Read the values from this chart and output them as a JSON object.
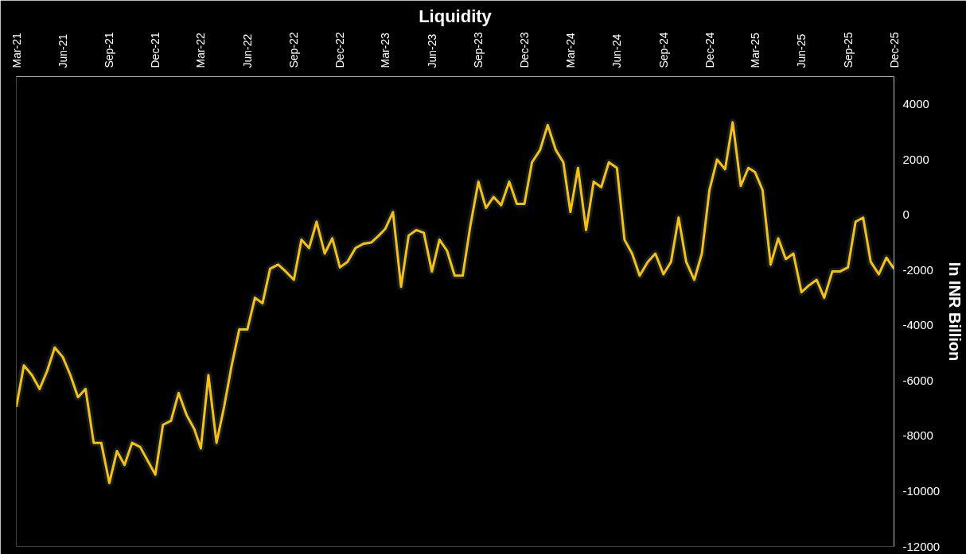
{
  "chart_data": {
    "type": "line",
    "title": "Liquidity",
    "ylabel": "In INR Billion",
    "x": [
      "2021-03-01",
      "2021-03-16",
      "2021-04-01",
      "2021-04-16",
      "2021-05-01",
      "2021-05-16",
      "2021-06-01",
      "2021-06-16",
      "2021-07-01",
      "2021-07-16",
      "2021-08-01",
      "2021-08-16",
      "2021-09-01",
      "2021-09-16",
      "2021-10-01",
      "2021-10-16",
      "2021-11-01",
      "2021-11-16",
      "2021-12-01",
      "2021-12-16",
      "2022-01-01",
      "2022-01-16",
      "2022-02-01",
      "2022-02-16",
      "2022-03-01",
      "2022-03-16",
      "2022-04-01",
      "2022-04-16",
      "2022-05-01",
      "2022-05-16",
      "2022-06-01",
      "2022-06-16",
      "2022-07-01",
      "2022-07-16",
      "2022-08-01",
      "2022-08-16",
      "2022-09-01",
      "2022-09-16",
      "2022-10-01",
      "2022-10-16",
      "2022-11-01",
      "2022-11-16",
      "2022-12-01",
      "2022-12-16",
      "2023-01-01",
      "2023-01-16",
      "2023-02-01",
      "2023-02-16",
      "2023-03-01",
      "2023-03-16",
      "2023-04-01",
      "2023-04-16",
      "2023-05-01",
      "2023-05-16",
      "2023-06-01",
      "2023-06-16",
      "2023-07-01",
      "2023-07-16",
      "2023-08-01",
      "2023-08-16",
      "2023-09-01",
      "2023-09-16",
      "2023-10-01",
      "2023-10-16",
      "2023-11-01",
      "2023-11-16",
      "2023-12-01",
      "2023-12-16",
      "2024-01-01",
      "2024-01-16",
      "2024-02-01",
      "2024-02-16",
      "2024-03-01",
      "2024-03-16",
      "2024-04-01",
      "2024-04-16",
      "2024-05-01",
      "2024-05-16",
      "2024-06-01",
      "2024-06-16",
      "2024-07-01",
      "2024-07-16",
      "2024-08-01",
      "2024-08-16",
      "2024-09-01",
      "2024-09-16",
      "2024-10-01",
      "2024-10-16",
      "2024-11-01",
      "2024-11-16",
      "2024-12-01",
      "2024-12-16",
      "2025-01-01",
      "2025-01-16",
      "2025-02-01",
      "2025-02-16",
      "2025-03-01",
      "2025-03-16",
      "2025-04-01",
      "2025-04-16",
      "2025-05-01",
      "2025-05-16",
      "2025-06-01",
      "2025-06-16",
      "2025-07-01",
      "2025-07-16",
      "2025-08-01",
      "2025-08-16",
      "2025-09-01",
      "2025-09-16",
      "2025-10-01",
      "2025-10-16",
      "2025-11-01",
      "2025-11-16",
      "2025-12-01"
    ],
    "series": [
      {
        "color": "#ffc000",
        "values": [
          -6950,
          -5450,
          -5800,
          -6300,
          -5650,
          -4800,
          -5150,
          -5800,
          -6600,
          -6300,
          -8250,
          -8250,
          -9700,
          -8550,
          -9050,
          -8250,
          -8400,
          -8900,
          -9400,
          -7600,
          -7450,
          -6450,
          -7250,
          -7750,
          -8450,
          -5800,
          -8250,
          -6950,
          -5450,
          -4150,
          -4150,
          -3000,
          -3200,
          -1950,
          -1800,
          -2050,
          -2350,
          -900,
          -1200,
          -250,
          -1400,
          -850,
          -1900,
          -1700,
          -1200,
          -1050,
          -1000,
          -750,
          -500,
          100,
          -2600,
          -750,
          -550,
          -650,
          -2050,
          -900,
          -1300,
          -2200,
          -2200,
          -400,
          1200,
          250,
          650,
          350,
          1200,
          400,
          400,
          1900,
          2350,
          3250,
          2350,
          1900,
          100,
          1700,
          -550,
          1200,
          1000,
          1900,
          1700,
          -900,
          -1400,
          -2200,
          -1700,
          -1400,
          -2150,
          -1700,
          -100,
          -1700,
          -2350,
          -1400,
          900,
          2000,
          1650,
          3350,
          1050,
          1700,
          1550,
          900,
          -1800,
          -850,
          -1600,
          -1400,
          -2800,
          -2550,
          -2350,
          -3000,
          -2050,
          -2050,
          -1900,
          -250,
          -100,
          -1700,
          -2150,
          -1550,
          -1950
        ]
      }
    ],
    "xlim": [
      "2021-03-01",
      "2025-12-01"
    ],
    "xticks": [
      {
        "value": "2021-03-01",
        "label": "Mar-21"
      },
      {
        "value": "2021-06-01",
        "label": "Jun-21"
      },
      {
        "value": "2021-09-01",
        "label": "Sep-21"
      },
      {
        "value": "2021-12-01",
        "label": "Dec-21"
      },
      {
        "value": "2022-03-01",
        "label": "Mar-22"
      },
      {
        "value": "2022-06-01",
        "label": "Jun-22"
      },
      {
        "value": "2022-09-01",
        "label": "Sep-22"
      },
      {
        "value": "2022-12-01",
        "label": "Dec-22"
      },
      {
        "value": "2023-03-01",
        "label": "Mar-23"
      },
      {
        "value": "2023-06-01",
        "label": "Jun-23"
      },
      {
        "value": "2023-09-01",
        "label": "Sep-23"
      },
      {
        "value": "2023-12-01",
        "label": "Dec-23"
      },
      {
        "value": "2024-03-01",
        "label": "Mar-24"
      },
      {
        "value": "2024-06-01",
        "label": "Jun-24"
      },
      {
        "value": "2024-09-01",
        "label": "Sep-24"
      },
      {
        "value": "2024-12-01",
        "label": "Dec-24"
      },
      {
        "value": "2025-03-01",
        "label": "Mar-25"
      },
      {
        "value": "2025-06-01",
        "label": "Jun-25"
      },
      {
        "value": "2025-09-01",
        "label": "Sep-25"
      },
      {
        "value": "2025-12-01",
        "label": "Dec-25"
      }
    ],
    "ylim": [
      -12000,
      5000
    ],
    "yticks": [
      -12000,
      -10000,
      -8000,
      -6000,
      -4000,
      -2000,
      0,
      2000,
      4000
    ],
    "grid": false,
    "marker": "none",
    "line_style": "solid"
  }
}
